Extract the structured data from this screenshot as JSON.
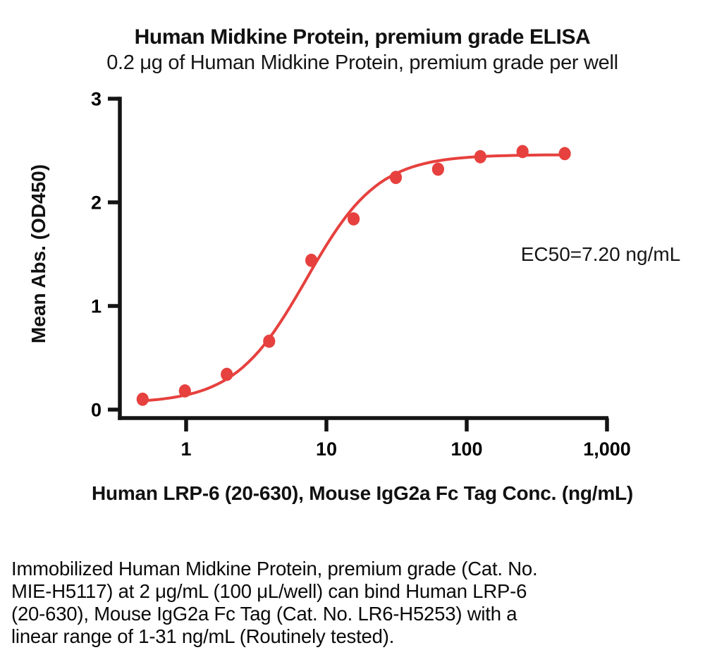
{
  "header": {
    "title": "Human Midkine Protein, premium grade ELISA",
    "subtitle": "0.2 μg of Human Midkine Protein, premium grade per well"
  },
  "chart_data": {
    "type": "scatter",
    "title": "Human Midkine Protein, premium grade ELISA",
    "subtitle": "0.2 μg of Human Midkine Protein, premium grade per well",
    "xlabel": "Human LRP-6 (20-630), Mouse IgG2a Fc Tag Conc. (ng/mL)",
    "ylabel": "Mean Abs. (OD450)",
    "x_scale": "log10",
    "xlim": [
      0.34,
      1000
    ],
    "ylim": [
      0,
      3
    ],
    "grid": false,
    "legend": "none",
    "x_ticks": [
      {
        "value": 1,
        "label": "1"
      },
      {
        "value": 10,
        "label": "10"
      },
      {
        "value": 100,
        "label": "100"
      },
      {
        "value": 1000,
        "label": "1,000"
      }
    ],
    "y_ticks": [
      {
        "value": 0,
        "label": "0"
      },
      {
        "value": 1,
        "label": "1"
      },
      {
        "value": 2,
        "label": "2"
      },
      {
        "value": 3,
        "label": "3"
      }
    ],
    "series": [
      {
        "name": "Human LRP-6 (20-630), Mouse IgG2a Fc Tag",
        "marker": "circle",
        "color": "#E6413E",
        "x": [
          0.49,
          0.98,
          1.95,
          3.91,
          7.81,
          15.63,
          31.25,
          62.5,
          125,
          250,
          500
        ],
        "y": [
          0.1,
          0.18,
          0.34,
          0.66,
          1.44,
          1.84,
          2.24,
          2.32,
          2.44,
          2.49,
          2.47
        ]
      }
    ],
    "fit": {
      "model": "4PL",
      "bottom": 0.06,
      "top": 2.46,
      "ec50": 7.2,
      "hill": 1.7
    },
    "annotation": "EC50=7.20 ng/mL"
  },
  "caption": {
    "lines": [
      "Immobilized Human Midkine Protein, premium grade (Cat. No.",
      "MIE-H5117) at 2 μg/mL (100 μL/well) can bind Human LRP-6",
      "(20-630), Mouse IgG2a Fc Tag (Cat. No. LR6-H5253) with a",
      "linear range of 1-31 ng/mL (Routinely tested)."
    ]
  },
  "colors": {
    "curve": "#E6413E",
    "axis": "#141414",
    "text": "#000000",
    "background": "#ffffff"
  }
}
